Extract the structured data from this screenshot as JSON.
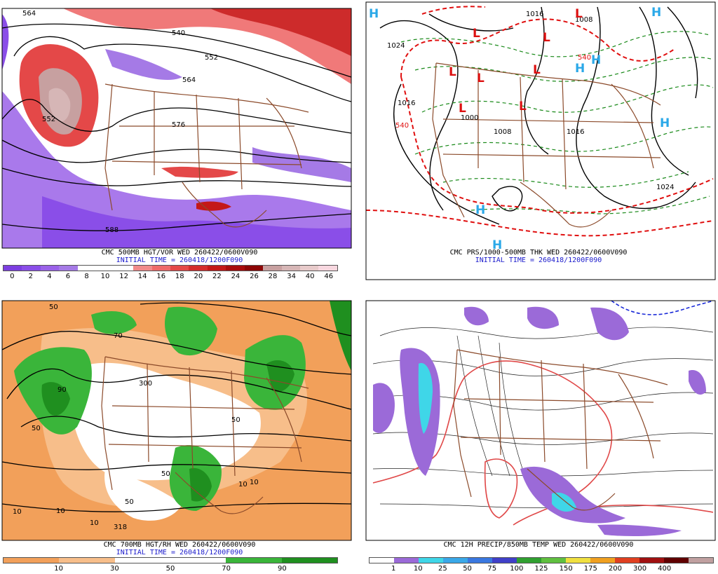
{
  "panels": {
    "p500": {
      "caption": "CMC 500MB HGT/VOR WED 260422/0600V090",
      "init": "INITIAL TIME = 260418/1200F090",
      "scale": {
        "colors": [
          "#7c3ee0",
          "#8a4ee8",
          "#9a62e8",
          "#a57ae6",
          "#ffffff",
          "#ffffff",
          "#ffffff",
          "#f08a8a",
          "#ee6a6a",
          "#e44848",
          "#d42c2c",
          "#c41818",
          "#a80c0c",
          "#8c0606",
          "#c7a0a0",
          "#d6b6b6",
          "#e7caca",
          "#f7d7df"
        ],
        "ticks": [
          "0",
          "2",
          "4",
          "6",
          "8",
          "10",
          "12",
          "14",
          "16",
          "18",
          "20",
          "22",
          "24",
          "26",
          "28",
          "34",
          "40",
          "46"
        ]
      },
      "contour_labels": [
        "564",
        "540",
        "552",
        "564",
        "576",
        "552",
        "588"
      ]
    },
    "pmslp": {
      "caption": "CMC PRS/1000-500MB THK WED 260422/0600V090",
      "init": "INITIAL TIME = 260418/1200F090",
      "contour_labels": [
        "1024",
        "1016",
        "1000",
        "1008",
        "1016",
        "1016",
        "1024",
        "1008",
        "540",
        "540"
      ],
      "highs": [
        "H",
        "H",
        "H",
        "H",
        "H",
        "H",
        "H"
      ],
      "lows": [
        "L",
        "L",
        "L",
        "L",
        "L",
        "L",
        "L",
        "L"
      ]
    },
    "p700": {
      "caption": "CMC 700MB HGT/RH WED 260422/0600V090",
      "init": "INITIAL TIME = 260418/1200F090",
      "scale": {
        "colors": [
          "#f2a05a",
          "#f2a05a",
          "#f7be8a",
          "#f7be8a",
          "#ffffff",
          "#ffffff",
          "#ffffff",
          "#ffffff",
          "#3ab53a",
          "#3ab53a",
          "#1f8f1f",
          "#1f8f1f"
        ],
        "ticks": [
          "10",
          "30",
          "50",
          "70",
          "90"
        ]
      },
      "contour_labels": [
        "10",
        "50",
        "70",
        "90",
        "300",
        "50",
        "10",
        "50",
        "50",
        "10",
        "50",
        "10",
        "10",
        "318"
      ]
    },
    "pprecip": {
      "caption": "CMC 12H PRECIP/850MB TEMP WED 260422/0600V090",
      "scale": {
        "colors": [
          "#ffffff",
          "#9b6ad8",
          "#3fd6e8",
          "#3aa8e8",
          "#3a78e0",
          "#4040c8",
          "#30a030",
          "#60c040",
          "#f0e040",
          "#f0a020",
          "#e04020",
          "#a01010",
          "#600000",
          "#c0a0a0"
        ],
        "ticks": [
          "1",
          "10",
          "25",
          "50",
          "75",
          "100",
          "125",
          "150",
          "175",
          "200",
          "300",
          "400"
        ]
      }
    }
  }
}
